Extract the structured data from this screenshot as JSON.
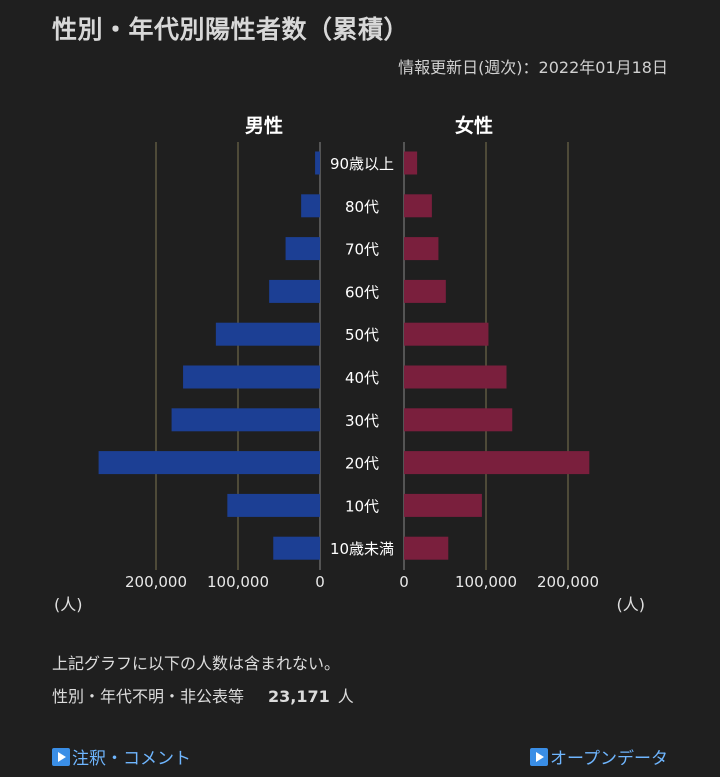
{
  "page": {
    "title": "性別・年代別陽性者数（累積）",
    "updated": "情報更新日(週次)：2022年01月18日"
  },
  "chart_data": {
    "type": "bar",
    "orientation": "population-pyramid",
    "categories": [
      "90歳以上",
      "80代",
      "70代",
      "60代",
      "50代",
      "40代",
      "30代",
      "20代",
      "10代",
      "10歳未満"
    ],
    "series": [
      {
        "name": "男性",
        "color": "#1c3f94",
        "values": [
          6000,
          23000,
          42000,
          62000,
          127000,
          167000,
          181000,
          270000,
          113000,
          57000
        ]
      },
      {
        "name": "女性",
        "color": "#7a1f3d",
        "values": [
          16000,
          34000,
          42000,
          51000,
          103000,
          125000,
          132000,
          226000,
          95000,
          54000
        ]
      }
    ],
    "xlim": [
      0,
      260000
    ],
    "ticks": [
      200000,
      100000,
      0
    ],
    "tick_labels_left": [
      "200,000",
      "100,000",
      "0"
    ],
    "tick_labels_right": [
      "0",
      "100,000",
      "200,000"
    ],
    "unit_label": "(人)",
    "grid": true
  },
  "notes": {
    "line1": "上記グラフに以下の人数は含まれない。",
    "line2_label": "性別・年代不明・非公表等",
    "line2_value": "23,171",
    "line2_unit": "人"
  },
  "links": {
    "left": "注釈・コメント",
    "right": "オープンデータ"
  }
}
